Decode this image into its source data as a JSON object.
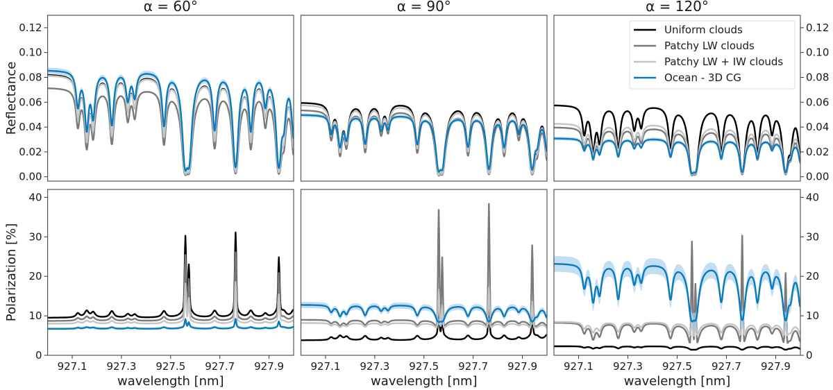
{
  "chart_data": {
    "type": "line",
    "layout": "2 rows x 3 columns of panels with shared axes",
    "panel_titles": [
      "α = 60°",
      "α = 90°",
      "α = 120°"
    ],
    "xlabel": "wavelength [nm]",
    "ylabels": [
      "Reflectance",
      "Polarization [%]"
    ],
    "xlim": [
      927.0,
      928.0
    ],
    "xticks": [
      927.1,
      927.3,
      927.5,
      927.7,
      927.9
    ],
    "xtick_labels": [
      "927.1",
      "927.3",
      "927.5",
      "927.7",
      "927.9"
    ],
    "rows": [
      {
        "quantity": "reflectance",
        "ylim": [
          -0.0035,
          0.13
        ],
        "yticks": [
          0,
          0.02,
          0.04,
          0.06,
          0.08,
          0.1,
          0.12
        ],
        "ytick_labels": [
          "0.00",
          "0.02",
          "0.04",
          "0.06",
          "0.08",
          "0.10",
          "0.12"
        ]
      },
      {
        "quantity": "polarization",
        "ylim": [
          0,
          42
        ],
        "yticks": [
          0,
          10,
          20,
          30,
          40
        ],
        "ytick_labels": [
          "0",
          "10",
          "20",
          "30",
          "40"
        ]
      }
    ],
    "legend": {
      "placement": "top-right of the top-right panel",
      "entries": [
        "Uniform clouds",
        "Patchy LW clouds",
        "Patchy LW + IW clouds",
        "Ocean - 3D CG"
      ]
    },
    "series_colors": [
      "#000000",
      "#7a7a7a",
      "#c4c4c4",
      "#0a7abf"
    ],
    "band_color": "#a9d0ea",
    "absorption_lines": [
      {
        "center": 927.123,
        "strength": 0.5,
        "pol_spike": 0
      },
      {
        "center": 927.159,
        "strength": 1.0,
        "pol_spike": 0
      },
      {
        "center": 927.185,
        "strength": 0.7,
        "pol_spike": 0
      },
      {
        "center": 927.261,
        "strength": 0.9,
        "pol_spike": 0
      },
      {
        "center": 927.326,
        "strength": 0.4,
        "pol_spike": 0
      },
      {
        "center": 927.354,
        "strength": 0.35,
        "pol_spike": 0
      },
      {
        "center": 927.473,
        "strength": 0.9,
        "pol_spike": 0
      },
      {
        "center": 927.56,
        "strength": 3.0,
        "pol_spike": 1.0
      },
      {
        "center": 927.574,
        "strength": 2.5,
        "pol_spike": 0.6
      },
      {
        "center": 927.679,
        "strength": 1.0,
        "pol_spike": 0
      },
      {
        "center": 927.764,
        "strength": 3.0,
        "pol_spike": 1.05
      },
      {
        "center": 927.826,
        "strength": 1.0,
        "pol_spike": 0
      },
      {
        "center": 927.885,
        "strength": 0.45,
        "pol_spike": 0
      },
      {
        "center": 927.94,
        "strength": 3.0,
        "pol_spike": 0.7
      },
      {
        "center": 927.96,
        "strength": 0.7,
        "pol_spike": 0
      },
      {
        "center": 928.0,
        "strength": 1.2,
        "pol_spike": 0
      }
    ],
    "panels": [
      {
        "phase_angle_deg": 60,
        "reflectance": [
          {
            "name": "Uniform clouds",
            "continuum": 0.083,
            "line_scale": 1.0
          },
          {
            "name": "Patchy LW clouds",
            "continuum": 0.072,
            "line_scale": 1.1
          },
          {
            "name": "Patchy LW + IW clouds",
            "continuum": 0.082,
            "line_scale": 1.0
          },
          {
            "name": "Ocean - 3D CG",
            "continuum": 0.086,
            "line_scale": 0.8,
            "band": 0.0025
          }
        ],
        "polarization": [
          {
            "name": "Uniform clouds",
            "baseline": 9.5,
            "line_response": -0.3,
            "spike_amplitude": 18
          },
          {
            "name": "Patchy LW clouds",
            "baseline": 8.7,
            "line_response": -0.2,
            "spike_amplitude": 15
          },
          {
            "name": "Patchy LW + IW clouds",
            "baseline": 8.0,
            "line_response": -0.15,
            "spike_amplitude": 9
          },
          {
            "name": "Ocean - 3D CG",
            "baseline": 6.7,
            "line_response": -0.1,
            "spike_amplitude": 1.8,
            "band": 0.3
          }
        ]
      },
      {
        "phase_angle_deg": 90,
        "reflectance": [
          {
            "name": "Uniform clouds",
            "continuum": 0.06,
            "line_scale": 1.0
          },
          {
            "name": "Patchy LW clouds",
            "continuum": 0.054,
            "line_scale": 1.1
          },
          {
            "name": "Patchy LW + IW clouds",
            "continuum": 0.058,
            "line_scale": 1.0
          },
          {
            "name": "Ocean - 3D CG",
            "continuum": 0.05,
            "line_scale": 0.7,
            "band": 0.0015
          }
        ],
        "polarization": [
          {
            "name": "Uniform clouds",
            "baseline": 3.8,
            "line_response": -0.5,
            "spike_amplitude": 6
          },
          {
            "name": "Patchy LW clouds",
            "baseline": 9.0,
            "line_response": 0.25,
            "spike_amplitude": 30
          },
          {
            "name": "Patchy LW + IW clouds",
            "baseline": 8.2,
            "line_response": 0.2,
            "spike_amplitude": 10
          },
          {
            "name": "Ocean - 3D CG",
            "baseline": 12.8,
            "line_response": 0.35,
            "spike_amplitude": 0,
            "band": 0.8
          }
        ]
      },
      {
        "phase_angle_deg": 120,
        "reflectance": [
          {
            "name": "Uniform clouds",
            "continuum": 0.058,
            "line_scale": 1.0
          },
          {
            "name": "Patchy LW clouds",
            "continuum": 0.04,
            "line_scale": 1.0
          },
          {
            "name": "Patchy LW + IW clouds",
            "continuum": 0.043,
            "line_scale": 0.9
          },
          {
            "name": "Ocean - 3D CG",
            "continuum": 0.031,
            "line_scale": 0.7,
            "band": 0.0015
          }
        ],
        "polarization": [
          {
            "name": "Uniform clouds",
            "baseline": 2.3,
            "line_response": 0.4,
            "spike_amplitude": 0
          },
          {
            "name": "Patchy LW clouds",
            "baseline": 8.3,
            "line_response": 0.8,
            "spike_amplitude": 27
          },
          {
            "name": "Patchy LW + IW clouds",
            "baseline": 8.5,
            "line_response": 0.5,
            "spike_amplitude": 6
          },
          {
            "name": "Ocean - 3D CG",
            "baseline": 23.3,
            "line_response": 0.65,
            "spike_amplitude": 0,
            "band": 2.0
          }
        ]
      }
    ]
  }
}
